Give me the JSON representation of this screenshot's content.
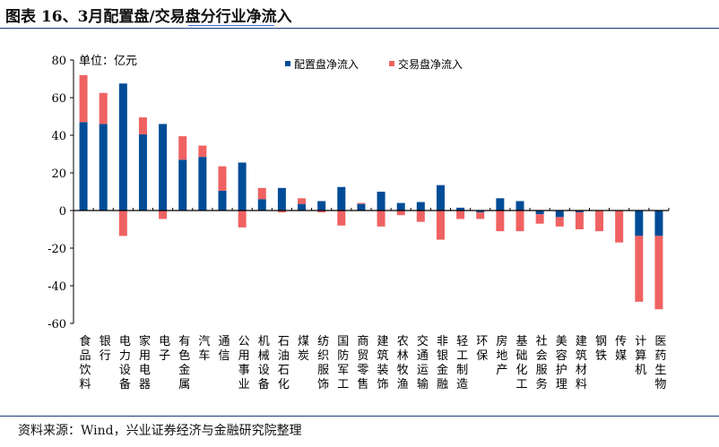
{
  "title": "图表 16、3月配置盘/交易盘分行业净流入",
  "source": "资料来源：Wind，兴业证券经济与金融研究院整理",
  "chart_data": {
    "type": "bar",
    "stacked": true,
    "unit_label": "单位：亿元",
    "ylim": [
      -60,
      80
    ],
    "yticks": [
      -60,
      -40,
      -20,
      0,
      20,
      40,
      60,
      80
    ],
    "grid": false,
    "legend": "top-center",
    "categories": [
      "食品饮料",
      "银行",
      "电力设备",
      "家用电器",
      "电子",
      "有色金属",
      "汽车",
      "通信",
      "公用事业",
      "机械设备",
      "石油石化",
      "煤炭",
      "纺织服饰",
      "国防军工",
      "商贸零售",
      "建筑装饰",
      "农林牧渔",
      "交通运输",
      "非银金融",
      "轻工制造",
      "环保",
      "房地产",
      "基础化工",
      "社会服务",
      "美容护理",
      "建筑材料",
      "钢铁",
      "传媒",
      "计算机",
      "医药生物"
    ],
    "series": [
      {
        "name": "配置盘净流入",
        "color": "#004c97",
        "values": [
          47,
          46,
          67.5,
          40.5,
          46,
          27,
          28.5,
          10.5,
          25.5,
          6,
          12,
          3.5,
          5,
          12.5,
          3.5,
          10,
          4,
          4.5,
          13.5,
          1.5,
          -1,
          6.5,
          5,
          -2,
          -3.5,
          -1,
          0,
          0,
          -13.5,
          -13.5
        ]
      },
      {
        "name": "交易盘净流入",
        "color": "#f06262",
        "values": [
          25,
          16.5,
          -13.5,
          9,
          -4.5,
          12.5,
          6,
          13,
          -9,
          6,
          -1,
          3,
          -1,
          -8,
          0.5,
          -8.5,
          -2.5,
          -6,
          -15.5,
          -4.5,
          -3.5,
          -11,
          -11,
          -5,
          -5,
          -9,
          -11,
          -17,
          -35,
          -39
        ]
      }
    ]
  }
}
